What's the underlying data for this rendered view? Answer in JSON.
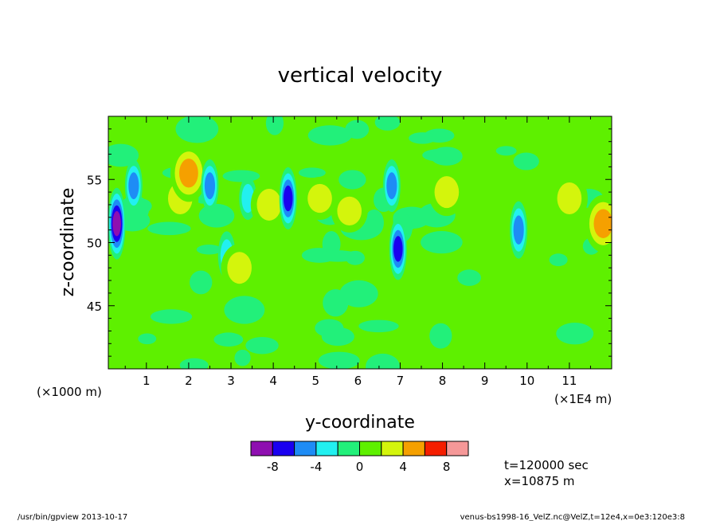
{
  "chart_data": {
    "type": "heatmap",
    "title": "vertical velocity",
    "xlabel": "y-coordinate",
    "ylabel": "z-coordinate",
    "x_unit_left": "(×1000 m)",
    "x_unit_right": "(×1E4 m)",
    "xlim": [
      0.1,
      12.0
    ],
    "ylim": [
      40,
      60
    ],
    "xticks": [
      1,
      2,
      3,
      4,
      5,
      6,
      7,
      8,
      9,
      10,
      11
    ],
    "yticks": [
      45,
      50,
      55
    ],
    "colorbar": {
      "levels": [
        -10,
        -8,
        -6,
        -4,
        -2,
        0,
        2,
        4,
        6,
        8,
        10
      ],
      "tick_labels": [
        "-8",
        "-4",
        "0",
        "4",
        "8"
      ],
      "tick_values": [
        -8,
        -4,
        0,
        4,
        8
      ],
      "colors": [
        "#8e0fb0",
        "#1a00f0",
        "#1e8cf5",
        "#22f0f0",
        "#22f07a",
        "#5ef000",
        "#d4f50c",
        "#f5a000",
        "#f51e00",
        "#f59898"
      ]
    },
    "features": [
      {
        "y": 0.3,
        "z": 51.5,
        "value": -9
      },
      {
        "y": 0.7,
        "z": 54.5,
        "value": -5
      },
      {
        "y": 1.8,
        "z": 53.5,
        "value": 4
      },
      {
        "y": 2.0,
        "z": 55.5,
        "value": 6
      },
      {
        "y": 2.5,
        "z": 54.5,
        "value": -5
      },
      {
        "y": 2.9,
        "z": 49.0,
        "value": -4
      },
      {
        "y": 3.2,
        "z": 48.0,
        "value": 4
      },
      {
        "y": 3.4,
        "z": 53.5,
        "value": -3
      },
      {
        "y": 3.9,
        "z": 53.0,
        "value": 4
      },
      {
        "y": 4.35,
        "z": 53.5,
        "value": -7
      },
      {
        "y": 5.1,
        "z": 53.5,
        "value": 3
      },
      {
        "y": 5.8,
        "z": 52.5,
        "value": 3
      },
      {
        "y": 6.8,
        "z": 54.5,
        "value": -5
      },
      {
        "y": 6.95,
        "z": 49.5,
        "value": -7
      },
      {
        "y": 8.1,
        "z": 54.0,
        "value": 4
      },
      {
        "y": 9.8,
        "z": 51.0,
        "value": -6
      },
      {
        "y": 11.0,
        "z": 53.5,
        "value": 4
      },
      {
        "y": 11.8,
        "z": 51.5,
        "value": 6
      }
    ],
    "annotations": [
      "t=120000 sec",
      "x=10875 m"
    ]
  },
  "footer": {
    "left": "/usr/bin/gpview   2013-10-17",
    "right": "venus-bs1998-16_VelZ.nc@VelZ,t=12e4,x=0e3:120e3:8"
  }
}
